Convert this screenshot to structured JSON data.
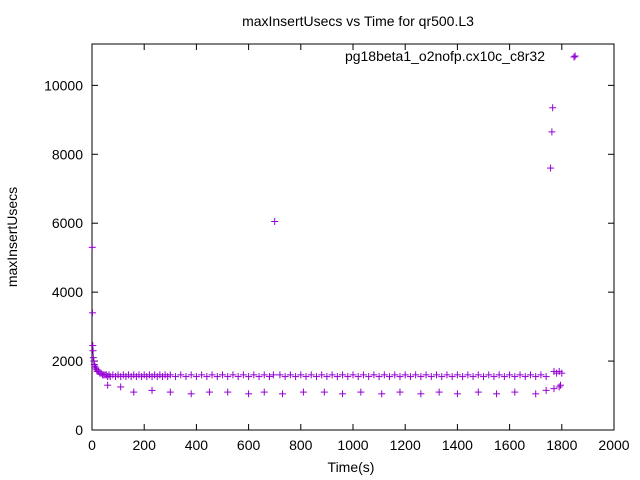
{
  "chart_data": {
    "type": "scatter",
    "title": "maxInsertUsecs vs Time for qr500.L3",
    "xlabel": "Time(s)",
    "ylabel": "maxInsertUsecs",
    "xlim": [
      0,
      2000
    ],
    "ylim": [
      0,
      11200
    ],
    "x_ticks": [
      0,
      200,
      400,
      600,
      800,
      1000,
      1200,
      1400,
      1600,
      1800,
      2000
    ],
    "y_ticks": [
      0,
      2000,
      4000,
      6000,
      8000,
      10000
    ],
    "grid": false,
    "legend_position": "top-right",
    "series": [
      {
        "name": "pg18beta1_o2nofp.cx10c_c8r32",
        "color": "#9400d3",
        "marker": "plus",
        "x": [
          1,
          2,
          3,
          4,
          5,
          7,
          9,
          11,
          13,
          15,
          18,
          20,
          25,
          30,
          35,
          40,
          45,
          50,
          55,
          60,
          65,
          70,
          80,
          90,
          100,
          110,
          120,
          130,
          140,
          150,
          160,
          170,
          180,
          190,
          200,
          210,
          220,
          230,
          240,
          250,
          260,
          270,
          280,
          290,
          300,
          320,
          340,
          360,
          380,
          400,
          420,
          440,
          460,
          480,
          500,
          520,
          540,
          560,
          580,
          600,
          620,
          640,
          660,
          680,
          695,
          700,
          720,
          740,
          760,
          780,
          800,
          820,
          840,
          860,
          880,
          900,
          920,
          940,
          960,
          980,
          1000,
          1020,
          1040,
          1060,
          1080,
          1100,
          1120,
          1140,
          1160,
          1180,
          1200,
          1220,
          1240,
          1260,
          1280,
          1300,
          1320,
          1340,
          1360,
          1380,
          1400,
          1420,
          1440,
          1460,
          1480,
          1500,
          1520,
          1540,
          1560,
          1580,
          1600,
          1620,
          1640,
          1660,
          1680,
          1700,
          1720,
          1740,
          1757,
          1762,
          1765,
          1770,
          1780,
          1790,
          1800,
          1851,
          60,
          110,
          160,
          230,
          300,
          380,
          450,
          520,
          600,
          660,
          730,
          810,
          890,
          960,
          1030,
          1110,
          1180,
          1260,
          1330,
          1400,
          1480,
          1550,
          1620,
          1700,
          1740,
          1770,
          1790,
          1795
        ],
        "y": [
          5300,
          3400,
          2450,
          2300,
          2100,
          2000,
          1900,
          1850,
          1800,
          1800,
          1750,
          1700,
          1700,
          1650,
          1650,
          1600,
          1600,
          1600,
          1600,
          1550,
          1600,
          1550,
          1600,
          1550,
          1600,
          1550,
          1600,
          1550,
          1600,
          1550,
          1600,
          1550,
          1600,
          1550,
          1600,
          1550,
          1600,
          1550,
          1600,
          1550,
          1600,
          1550,
          1600,
          1550,
          1600,
          1550,
          1600,
          1550,
          1600,
          1550,
          1600,
          1550,
          1600,
          1550,
          1600,
          1550,
          1600,
          1550,
          1600,
          1550,
          1600,
          1550,
          1600,
          1550,
          1600,
          6050,
          1600,
          1550,
          1600,
          1550,
          1600,
          1550,
          1600,
          1550,
          1600,
          1550,
          1600,
          1550,
          1600,
          1550,
          1600,
          1550,
          1600,
          1550,
          1600,
          1550,
          1600,
          1550,
          1600,
          1550,
          1600,
          1550,
          1600,
          1550,
          1600,
          1550,
          1600,
          1550,
          1600,
          1550,
          1600,
          1550,
          1600,
          1550,
          1600,
          1550,
          1600,
          1550,
          1600,
          1550,
          1600,
          1550,
          1600,
          1550,
          1600,
          1550,
          1600,
          1550,
          7600,
          8650,
          9350,
          1700,
          1650,
          1700,
          1650,
          10850,
          1300,
          1250,
          1100,
          1150,
          1100,
          1050,
          1100,
          1100,
          1050,
          1100,
          1050,
          1100,
          1100,
          1050,
          1100,
          1050,
          1100,
          1050,
          1100,
          1050,
          1100,
          1050,
          1100,
          1050,
          1150,
          1200,
          1250,
          1300
        ]
      }
    ]
  }
}
